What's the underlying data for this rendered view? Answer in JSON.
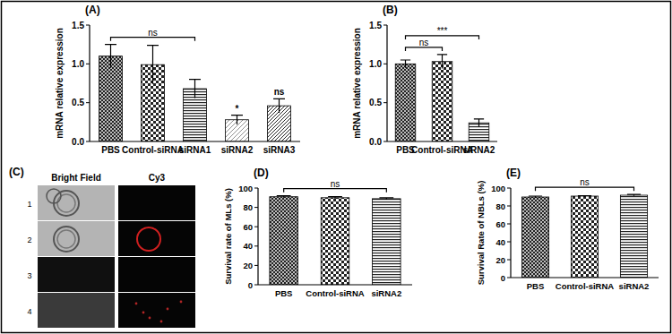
{
  "chart_data": [
    {
      "type": "bar",
      "title": "(A)",
      "y_label": "mRNA relative expression",
      "categories": [
        "PBS",
        "Control-siRNA",
        "siRNA1",
        "siRNA2",
        "siRNA3"
      ],
      "values": [
        1.1,
        0.99,
        0.68,
        0.28,
        0.46
      ],
      "errors": [
        0.15,
        0.25,
        0.12,
        0.06,
        0.09
      ],
      "color": "#222222",
      "ylim": [
        0,
        1.5
      ],
      "yticks": [
        {
          "value": 0,
          "label": "0.0"
        },
        {
          "value": 0.5,
          "label": "0.5"
        },
        {
          "value": 1,
          "label": "1.0"
        },
        {
          "value": 1.5,
          "label": "1.5"
        }
      ],
      "annotations": [
        {
          "text": "ns",
          "from": "PBS",
          "to": "siRNA1"
        },
        {
          "text": "*",
          "from": "siRNA2",
          "to": "siRNA2"
        },
        {
          "text": "ns",
          "from": "siRNA3",
          "to": "siRNA3"
        }
      ]
    },
    {
      "type": "bar",
      "title": "(B)",
      "y_label": "mRNA relative expression",
      "categories": [
        "PBS",
        "Control-siRNA",
        "siRNA2"
      ],
      "values": [
        1.0,
        1.03,
        0.24
      ],
      "errors": [
        0.05,
        0.09,
        0.05
      ],
      "color": "#222222",
      "ylim": [
        0,
        1.5
      ],
      "yticks": [
        {
          "value": 0,
          "label": "0.0"
        },
        {
          "value": 0.5,
          "label": "0.5"
        },
        {
          "value": 1,
          "label": "1.0"
        },
        {
          "value": 1.5,
          "label": "1.5"
        }
      ],
      "annotations": [
        {
          "text": "ns",
          "from": "PBS",
          "to": "Control-siRNA"
        },
        {
          "text": "***",
          "from": "PBS",
          "to": "siRNA2"
        }
      ]
    },
    {
      "type": "bar",
      "title": "(D)",
      "y_label": "Survival rate of MLs (%)",
      "categories": [
        "PBS",
        "Control-siRNA",
        "siRNA2"
      ],
      "values": [
        91,
        90,
        89
      ],
      "errors": [
        1,
        1,
        1
      ],
      "color": "#222222",
      "ylim": [
        0,
        100
      ],
      "yticks": [
        0,
        20,
        40,
        60,
        80,
        100
      ],
      "annotations": [
        {
          "text": "ns",
          "from": "PBS",
          "to": "siRNA2"
        }
      ]
    },
    {
      "type": "bar",
      "title": "(E)",
      "y_label": "Survival Rate of NBLs (%)",
      "categories": [
        "PBS",
        "Control-siRNA",
        "siRNA2"
      ],
      "values": [
        90,
        91,
        92
      ],
      "errors": [
        1,
        0.5,
        0.8
      ],
      "color": "#222222",
      "ylim": [
        0,
        100
      ],
      "yticks": [
        0,
        20,
        40,
        60,
        80,
        100
      ],
      "annotations": [
        {
          "text": "ns",
          "from": "PBS",
          "to": "siRNA2"
        }
      ]
    }
  ],
  "image_panel": {
    "title": "(C)",
    "columns": [
      "Bright Field",
      "Cy3"
    ],
    "rows": [
      "1",
      "2",
      "3",
      "4"
    ]
  }
}
